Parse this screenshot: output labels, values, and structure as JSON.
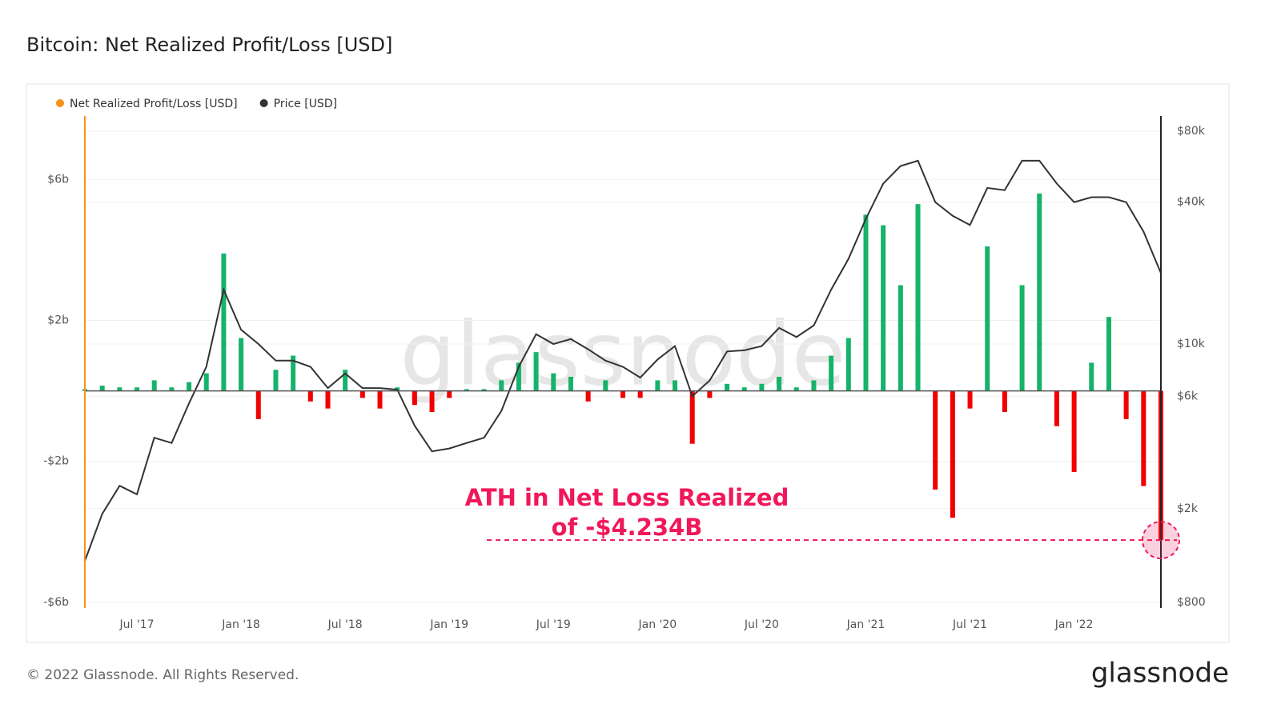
{
  "title": "Bitcoin: Net Realized Profit/Loss [USD]",
  "footer": "© 2022 Glassnode. All Rights Reserved.",
  "logo": "glassnode",
  "chart_data": {
    "type": "combo",
    "watermark": "glassnode",
    "x": [
      "2017-04",
      "2017-05",
      "2017-06",
      "2017-07",
      "2017-08",
      "2017-09",
      "2017-10",
      "2017-11",
      "2017-12",
      "2018-01",
      "2018-02",
      "2018-03",
      "2018-04",
      "2018-05",
      "2018-06",
      "2018-07",
      "2018-08",
      "2018-09",
      "2018-10",
      "2018-11",
      "2018-12",
      "2019-01",
      "2019-02",
      "2019-03",
      "2019-04",
      "2019-05",
      "2019-06",
      "2019-07",
      "2019-08",
      "2019-09",
      "2019-10",
      "2019-11",
      "2019-12",
      "2020-01",
      "2020-02",
      "2020-03",
      "2020-04",
      "2020-05",
      "2020-06",
      "2020-07",
      "2020-08",
      "2020-09",
      "2020-10",
      "2020-11",
      "2020-12",
      "2021-01",
      "2021-02",
      "2021-03",
      "2021-04",
      "2021-05",
      "2021-06",
      "2021-07",
      "2021-08",
      "2021-09",
      "2021-10",
      "2021-11",
      "2021-12",
      "2022-01",
      "2022-02",
      "2022-03",
      "2022-04",
      "2022-05",
      "2022-06"
    ],
    "xlim": [
      "2017-04",
      "2022-06"
    ],
    "xticks": [
      {
        "value": "2017-07",
        "label": "Jul '17"
      },
      {
        "value": "2018-01",
        "label": "Jan '18"
      },
      {
        "value": "2018-07",
        "label": "Jul '18"
      },
      {
        "value": "2019-01",
        "label": "Jan '19"
      },
      {
        "value": "2019-07",
        "label": "Jul '19"
      },
      {
        "value": "2020-01",
        "label": "Jan '20"
      },
      {
        "value": "2020-07",
        "label": "Jul '20"
      },
      {
        "value": "2021-01",
        "label": "Jan '21"
      },
      {
        "value": "2021-07",
        "label": "Jul '21"
      },
      {
        "value": "2022-01",
        "label": "Jan '22"
      }
    ],
    "ylim": [
      -6.16,
      7.8
    ],
    "yticks": [
      {
        "value": -6,
        "label": "-$6b"
      },
      {
        "value": -2,
        "label": "-$2b"
      },
      {
        "value": 2,
        "label": "$2b"
      },
      {
        "value": 6,
        "label": "$6b"
      }
    ],
    "y2lim": [
      757,
      92900
    ],
    "y2_log": true,
    "y2ticks": [
      {
        "value": 800,
        "label": "$800"
      },
      {
        "value": 2000,
        "label": "$2k"
      },
      {
        "value": 6000,
        "label": "$6k"
      },
      {
        "value": 10000,
        "label": "$10k"
      },
      {
        "value": 40000,
        "label": "$40k"
      },
      {
        "value": 80000,
        "label": "$80k"
      }
    ],
    "series": [
      {
        "name": "Net Realized Profit/Loss [USD]",
        "type": "bar",
        "color": "#f7931a",
        "up_color": "#16b36a",
        "down_color": "#f00000",
        "values": [
          0.05,
          0.15,
          0.1,
          0.1,
          0.3,
          0.1,
          0.25,
          0.5,
          3.9,
          1.5,
          -0.8,
          0.6,
          1.0,
          -0.3,
          -0.5,
          0.6,
          -0.2,
          -0.5,
          0.1,
          -0.4,
          -0.6,
          -0.2,
          0.05,
          0.05,
          0.3,
          0.8,
          1.1,
          0.5,
          0.4,
          -0.3,
          0.3,
          -0.2,
          -0.2,
          0.3,
          0.3,
          -1.5,
          -0.2,
          0.2,
          0.1,
          0.2,
          0.4,
          0.1,
          0.3,
          1.0,
          1.5,
          5.0,
          4.7,
          3.0,
          5.3,
          -2.8,
          -3.6,
          -0.5,
          4.1,
          -0.6,
          3.0,
          5.6,
          -1.0,
          -2.3,
          0.8,
          2.1,
          -0.8,
          -2.7,
          -4.234
        ]
      },
      {
        "name": "Price [USD]",
        "type": "line",
        "axis": "y2",
        "color": "#333333",
        "values": [
          1200,
          1900,
          2500,
          2300,
          4000,
          3800,
          5600,
          8000,
          17000,
          11500,
          10000,
          8500,
          8500,
          8000,
          6500,
          7500,
          6500,
          6500,
          6400,
          4500,
          3500,
          3600,
          3800,
          4000,
          5200,
          8000,
          11000,
          10000,
          10500,
          9500,
          8500,
          8000,
          7200,
          8600,
          9800,
          6000,
          7000,
          9300,
          9400,
          9800,
          11700,
          10700,
          12000,
          17000,
          23000,
          34000,
          48000,
          57000,
          60000,
          40000,
          35000,
          32000,
          46000,
          45000,
          60000,
          60000,
          48000,
          40000,
          42000,
          42000,
          40000,
          30000,
          20000
        ]
      }
    ],
    "annotation": {
      "lines": [
        "ATH in Net Loss Realized",
        "of -$4.234B"
      ],
      "color": "#f0185a"
    }
  }
}
